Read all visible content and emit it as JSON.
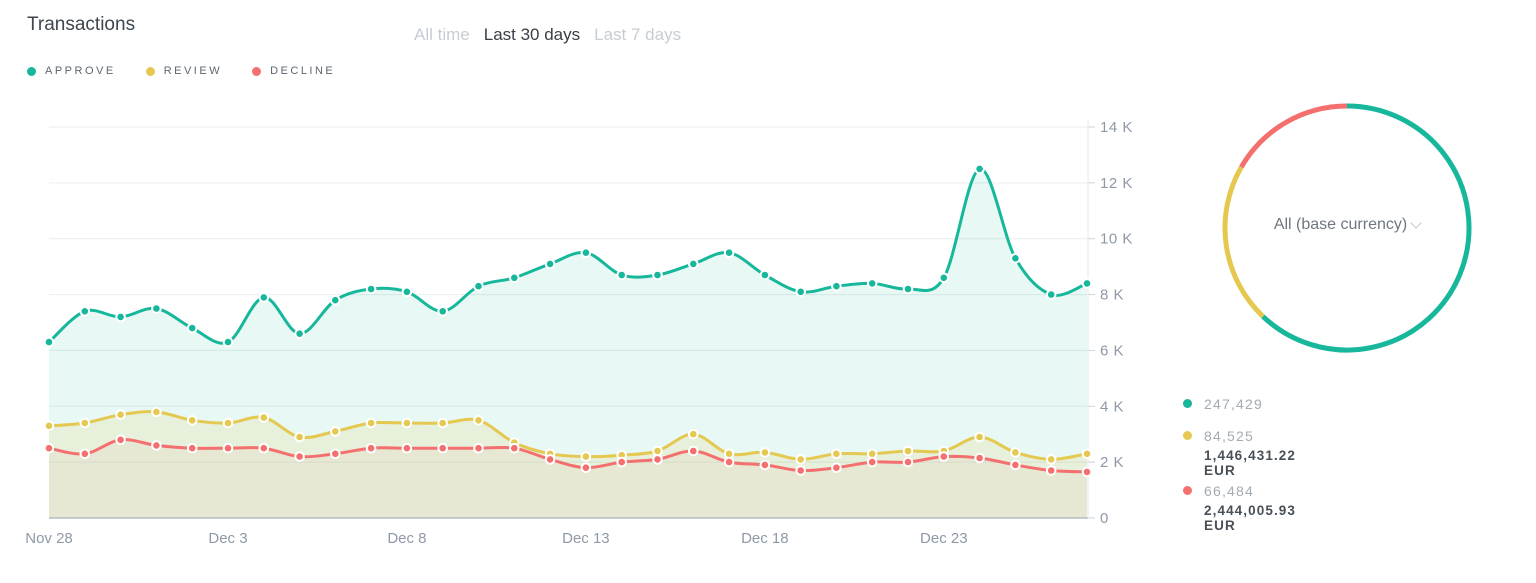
{
  "header": {
    "title": "Transactions",
    "tabs": [
      {
        "label": "All time",
        "active": false
      },
      {
        "label": "Last 30 days",
        "active": true
      },
      {
        "label": "Last 7 days",
        "active": false
      }
    ]
  },
  "legend": {
    "items": [
      {
        "label": "APPROVE",
        "color": "#17b79c"
      },
      {
        "label": "REVIEW",
        "color": "#e4c850"
      },
      {
        "label": "DECLINE",
        "color": "#f4706f"
      }
    ]
  },
  "chart_data": {
    "type": "line",
    "title": "Transactions",
    "xlabel": "",
    "ylabel": "",
    "ylim": [
      0,
      14000
    ],
    "grid": true,
    "legend_position": "top-left",
    "categories": [
      "Nov 28",
      "Nov 29",
      "Nov 30",
      "Dec 1",
      "Dec 2",
      "Dec 3",
      "Dec 4",
      "Dec 5",
      "Dec 6",
      "Dec 7",
      "Dec 8",
      "Dec 9",
      "Dec 10",
      "Dec 11",
      "Dec 12",
      "Dec 13",
      "Dec 14",
      "Dec 15",
      "Dec 16",
      "Dec 17",
      "Dec 18",
      "Dec 19",
      "Dec 20",
      "Dec 21",
      "Dec 22",
      "Dec 23",
      "Dec 24",
      "Dec 25",
      "Dec 26",
      "Dec 27"
    ],
    "x_ticks": [
      {
        "index": 0,
        "label": "Nov 28"
      },
      {
        "index": 5,
        "label": "Dec 3"
      },
      {
        "index": 10,
        "label": "Dec 8"
      },
      {
        "index": 15,
        "label": "Dec 13"
      },
      {
        "index": 20,
        "label": "Dec 18"
      },
      {
        "index": 25,
        "label": "Dec 23"
      }
    ],
    "y_ticks": [
      {
        "value": 0,
        "label": "0"
      },
      {
        "value": 2000,
        "label": "2 K"
      },
      {
        "value": 4000,
        "label": "4 K"
      },
      {
        "value": 6000,
        "label": "6 K"
      },
      {
        "value": 8000,
        "label": "8 K"
      },
      {
        "value": 10000,
        "label": "10 K"
      },
      {
        "value": 12000,
        "label": "12 K"
      },
      {
        "value": 14000,
        "label": "14 K"
      }
    ],
    "series": [
      {
        "name": "APPROVE",
        "color": "#17b79c",
        "values": [
          6300,
          7400,
          7200,
          7500,
          6800,
          6300,
          7900,
          6600,
          7800,
          8200,
          8100,
          7400,
          8300,
          8600,
          9100,
          9500,
          8700,
          8700,
          9100,
          9500,
          8700,
          8100,
          8300,
          8400,
          8200,
          8600,
          12500,
          9300,
          8000,
          8400
        ]
      },
      {
        "name": "REVIEW",
        "color": "#e4c850",
        "values": [
          3300,
          3400,
          3700,
          3800,
          3500,
          3400,
          3600,
          2900,
          3100,
          3400,
          3400,
          3400,
          3500,
          2700,
          2300,
          2200,
          2250,
          2400,
          3000,
          2300,
          2350,
          2100,
          2300,
          2300,
          2400,
          2400,
          2900,
          2350,
          2100,
          2300
        ]
      },
      {
        "name": "DECLINE",
        "color": "#f4706f",
        "values": [
          2500,
          2300,
          2800,
          2600,
          2500,
          2500,
          2500,
          2200,
          2300,
          2500,
          2500,
          2500,
          2500,
          2500,
          2100,
          1800,
          2000,
          2100,
          2400,
          2000,
          1900,
          1700,
          1800,
          2000,
          2000,
          2200,
          2150,
          1900,
          1700,
          1650
        ]
      }
    ]
  },
  "donut": {
    "center_label": "All (base currency)",
    "segments": [
      {
        "name": "APPROVE",
        "color": "#17b79c",
        "value": 247429
      },
      {
        "name": "REVIEW",
        "color": "#e4c850",
        "value": 84525
      },
      {
        "name": "DECLINE",
        "color": "#f4706f",
        "value": 66484
      }
    ]
  },
  "stats": {
    "rows": [
      {
        "series": "APPROVE",
        "color": "#17b79c",
        "count": "247,429",
        "amount": ""
      },
      {
        "series": "REVIEW",
        "color": "#e4c850",
        "count": "84,525",
        "amount": "1,446,431.22 EUR"
      },
      {
        "series": "DECLINE",
        "color": "#f4706f",
        "count": "66,484",
        "amount": "2,444,005.93 EUR"
      }
    ]
  }
}
